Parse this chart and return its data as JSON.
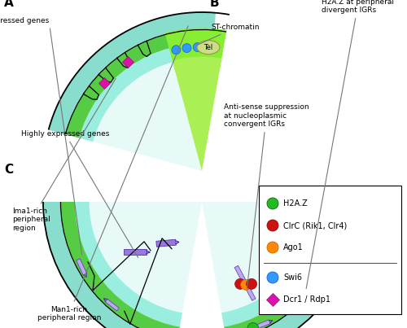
{
  "bg_color": "#ffffff",
  "cyan_outer": "#88ddcc",
  "cyan_mid": "#aaeedd",
  "green_band": "#55cc44",
  "green_bright": "#66ee33",
  "interior_color": "#e0faf5",
  "white_center": "#f0fafa",
  "purple_dark": "#6644bb",
  "purple_mid": "#8866cc",
  "purple_light": "#bbaaee",
  "green_dot": "#22bb22",
  "red_dot": "#cc1111",
  "orange_dot": "#ff8800",
  "blue_dot": "#3399ff",
  "pink_dot": "#dd11aa",
  "tel_color": "#ccdd88",
  "tel_edge": "#999933",
  "black": "#000000",
  "gray_line": "#888888",
  "lowly_expressed": "Lowly expressed genes",
  "highly_expressed": "Highly expressed genes",
  "h2az_label": "H2A.Z at peripheral\ndivergent IGRs",
  "antisense_label": "Anti-sense suppression\nat nucleoplasmic\nconvergent IGRs",
  "ima1_label": "Ima1-rich\nperipheral\nregion",
  "st_label": "ST-chromatin",
  "man1_label": "Man1-rich\nperipheral region",
  "tel_label": "Tel",
  "legend_items": [
    {
      "color": "#22bb22",
      "label": "H2A.Z",
      "marker": "circle",
      "edge": "#116611"
    },
    {
      "color": "#cc1111",
      "label": "ClrC (Rik1, Clr4)",
      "marker": "circle",
      "edge": "#881111"
    },
    {
      "color": "#ff8800",
      "label": "Ago1",
      "marker": "circle",
      "edge": "#cc6600"
    },
    {
      "color": "#3399ff",
      "label": "Swi6",
      "marker": "circle",
      "edge": "#1166cc"
    },
    {
      "color": "#dd11aa",
      "label": "Dcr1 / Rdp1",
      "marker": "diamond",
      "edge": "#991177"
    }
  ]
}
